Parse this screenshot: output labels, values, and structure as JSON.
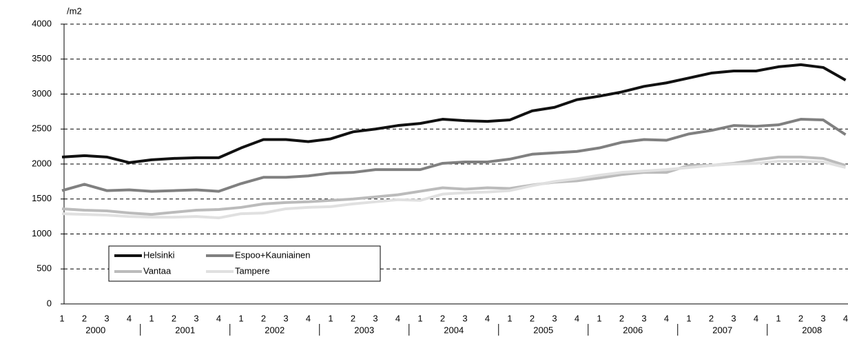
{
  "chart_data": {
    "type": "line",
    "y_label": "/m2",
    "categories": [
      "1",
      "2",
      "3",
      "4",
      "1",
      "2",
      "3",
      "4",
      "1",
      "2",
      "3",
      "4",
      "1",
      "2",
      "3",
      "4",
      "1",
      "2",
      "3",
      "4",
      "1",
      "2",
      "3",
      "4",
      "1",
      "2",
      "3",
      "4",
      "1",
      "2",
      "3",
      "4",
      "1",
      "2",
      "3",
      "4"
    ],
    "years": [
      "2000",
      "2001",
      "2002",
      "2003",
      "2004",
      "2005",
      "2006",
      "2007",
      "2008"
    ],
    "ylim": [
      0,
      4000
    ],
    "yticks": [
      0,
      500,
      1000,
      1500,
      2000,
      2500,
      3000,
      3500,
      4000
    ],
    "grid": true,
    "series": [
      {
        "name": "Helsinki",
        "color": "#111111",
        "values": [
          2100,
          2120,
          2100,
          2020,
          2060,
          2080,
          2090,
          2090,
          2230,
          2350,
          2350,
          2320,
          2360,
          2460,
          2500,
          2550,
          2580,
          2640,
          2620,
          2610,
          2630,
          2760,
          2810,
          2920,
          2970,
          3030,
          3110,
          3160,
          3230,
          3300,
          3330,
          3330,
          3390,
          3420,
          3380,
          3200
        ]
      },
      {
        "name": "Espoo+Kauniainen",
        "color": "#808080",
        "values": [
          1620,
          1710,
          1620,
          1630,
          1610,
          1620,
          1630,
          1610,
          1720,
          1810,
          1810,
          1830,
          1870,
          1880,
          1920,
          1920,
          1920,
          2010,
          2030,
          2030,
          2070,
          2140,
          2160,
          2180,
          2230,
          2310,
          2350,
          2340,
          2430,
          2480,
          2550,
          2540,
          2560,
          2640,
          2630,
          2420
        ]
      },
      {
        "name": "Vantaa",
        "color": "#bbbbbb",
        "values": [
          1360,
          1340,
          1330,
          1300,
          1280,
          1310,
          1340,
          1350,
          1380,
          1430,
          1450,
          1460,
          1480,
          1500,
          1530,
          1560,
          1610,
          1660,
          1640,
          1660,
          1650,
          1700,
          1740,
          1760,
          1800,
          1850,
          1880,
          1880,
          1980,
          1980,
          2010,
          2060,
          2100,
          2100,
          2080,
          1980
        ]
      },
      {
        "name": "Tampere",
        "color": "#e0e0e0",
        "values": [
          1290,
          1280,
          1270,
          1250,
          1240,
          1240,
          1250,
          1230,
          1290,
          1300,
          1360,
          1380,
          1390,
          1430,
          1460,
          1490,
          1480,
          1570,
          1590,
          1600,
          1620,
          1690,
          1750,
          1790,
          1840,
          1880,
          1900,
          1920,
          1950,
          1980,
          2000,
          2010,
          2040,
          2040,
          2030,
          1950
        ]
      }
    ]
  }
}
